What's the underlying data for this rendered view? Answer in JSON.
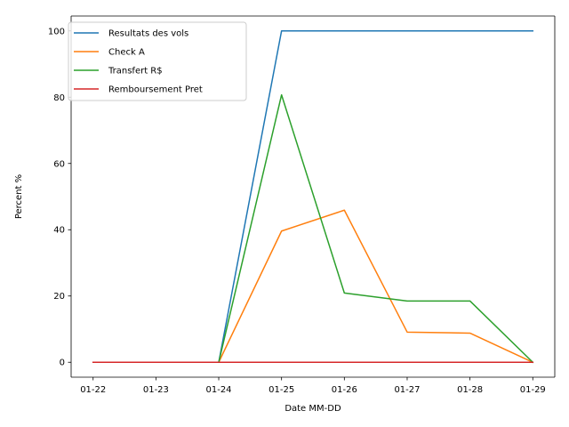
{
  "chart_data": {
    "type": "line",
    "xlabel": "Date MM-DD",
    "ylabel": "Percent %",
    "x": [
      "01-22",
      "01-23",
      "01-24",
      "01-25",
      "01-26",
      "01-27",
      "01-28",
      "01-29"
    ],
    "xlim": [
      -0.35,
      7.35
    ],
    "ylim": [
      -4.5,
      104.5
    ],
    "yticks": [
      0,
      20,
      40,
      60,
      80,
      100
    ],
    "grid": false,
    "legend_position": "upper-left",
    "series": [
      {
        "name": "Resultats des vols",
        "color": "#1f77b4",
        "values": [
          0,
          0,
          0,
          100,
          100,
          100,
          100,
          100
        ]
      },
      {
        "name": "Check A",
        "color": "#ff7f0e",
        "values": [
          0,
          0,
          0,
          39.6,
          45.9,
          9.1,
          8.8,
          0
        ]
      },
      {
        "name": "Transfert R$",
        "color": "#2ca02c",
        "values": [
          0,
          0,
          0,
          80.7,
          20.9,
          18.5,
          18.5,
          0
        ]
      },
      {
        "name": "Remboursement Pret",
        "color": "#d62728",
        "values": [
          0,
          0,
          0,
          0,
          0,
          0,
          0,
          0
        ]
      }
    ]
  }
}
